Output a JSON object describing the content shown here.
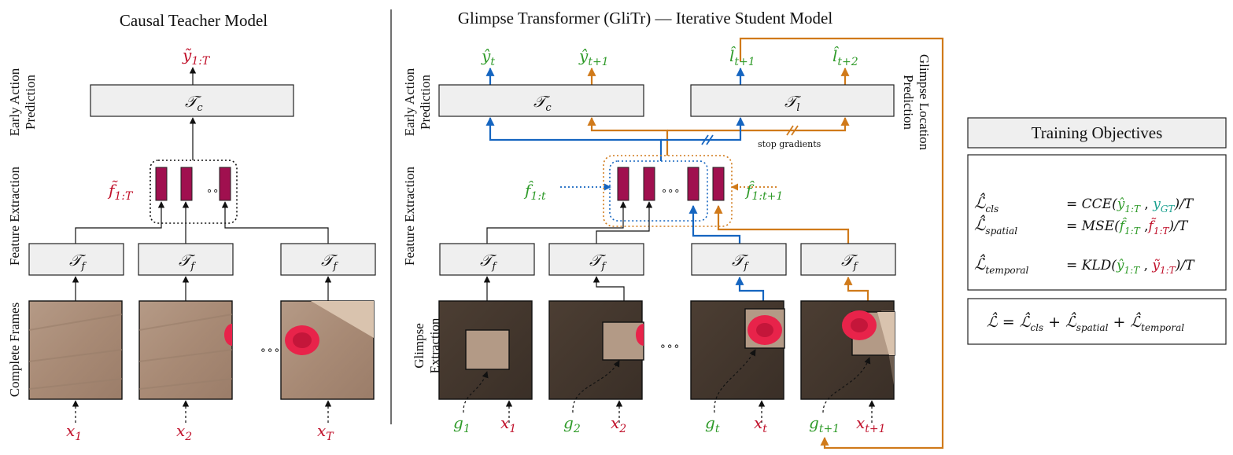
{
  "titles": {
    "teacher": "Causal Teacher Model",
    "student": "Glimpse Transformer (GliTr) — Iterative Student Model"
  },
  "side_labels": {
    "early_action": [
      "Early Action",
      "Prediction"
    ],
    "feature_extraction": "Feature Extraction",
    "complete_frames": "Complete Frames",
    "glimpse_extraction": [
      "Glimpse",
      "Extraction"
    ],
    "glimpse_location": [
      "Glimpse Location",
      "Prediction"
    ]
  },
  "modules": {
    "tc": "𝒯",
    "tc_sub": "c",
    "tf": "𝒯",
    "tf_sub": "f",
    "tl": "𝒯",
    "tl_sub": "l"
  },
  "teacher": {
    "output": "ỹ",
    "output_sub": "1:T",
    "features": "f̃",
    "features_sub": "1:T",
    "inputs": [
      {
        "sym": "x",
        "sub": "1"
      },
      {
        "sym": "x",
        "sub": "2"
      },
      {
        "sym": "x",
        "sub": "T"
      }
    ],
    "ellipsis": "∘∘∘"
  },
  "student": {
    "outputs": [
      {
        "sym": "ŷ",
        "sub": "t"
      },
      {
        "sym": "ŷ",
        "sub": "t+1"
      },
      {
        "sym": "l̂",
        "sub": "t+1"
      },
      {
        "sym": "l̂",
        "sub": "t+2"
      }
    ],
    "stop_gradients": "stop gradients",
    "feat_left": {
      "sym": "f̂",
      "sub": "1:t"
    },
    "feat_right": {
      "sym": "f̂",
      "sub": "1:t+1"
    },
    "inputs": [
      {
        "g": "g",
        "gsub": "1",
        "x": "x",
        "xsub": "1"
      },
      {
        "g": "g",
        "gsub": "2",
        "x": "x",
        "xsub": "2"
      },
      {
        "g": "g",
        "gsub": "t",
        "x": "x",
        "xsub": "t"
      },
      {
        "g": "g",
        "gsub": "t+1",
        "x": "x",
        "xsub": "t+1"
      }
    ],
    "ellipsis": "∘∘∘"
  },
  "objectives": {
    "title": "Training Objectives",
    "rows": [
      {
        "lhs": "ℒ̂",
        "lsub": "cls",
        "fn": "= CCE(",
        "a": "ŷ",
        "asub": "1:T",
        "sep": " , ",
        "b": "y",
        "bsub": "GT",
        "end": ")/T"
      },
      {
        "lhs": "ℒ̂",
        "lsub": "spatial",
        "fn": "= MSE(",
        "a": "f̂",
        "asub": "1:T",
        "sep": " ,",
        "b": "f̃",
        "bsub": "1:T",
        "end": ")/T"
      },
      {
        "lhs": "ℒ̂",
        "lsub": "temporal",
        "fn": "= KLD(",
        "a": "ŷ",
        "asub": "1:T",
        "sep": " , ",
        "b": "ỹ",
        "bsub": "1:T",
        "end": ")/T"
      }
    ],
    "total": {
      "lhs": "ℒ̂ = ",
      "t1": "ℒ̂",
      "s1": "cls",
      "t2": " + ℒ̂",
      "s2": "spatial",
      "t3": " + ℒ̂",
      "s3": "temporal"
    }
  },
  "colors": {
    "red": "#c0102a",
    "green": "#2e9a28",
    "teal": "#1aa08f",
    "blue": "#1565c0",
    "orange": "#d07a1a",
    "bar": "#a0104f",
    "box": "#efefef"
  }
}
